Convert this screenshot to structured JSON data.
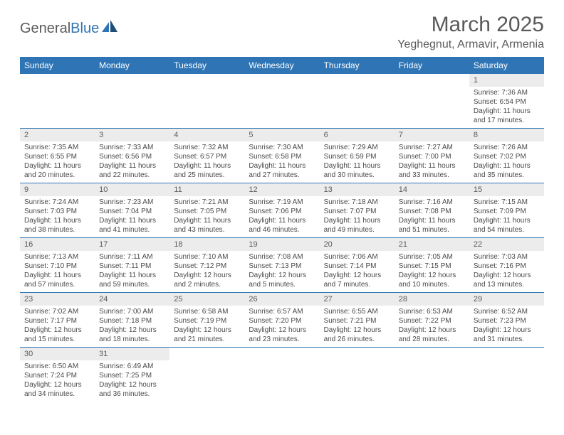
{
  "brand": {
    "text1": "General",
    "text2": "Blue"
  },
  "title": "March 2025",
  "location": "Yeghegnut, Armavir, Armenia",
  "colors": {
    "header_bg": "#2f75b5",
    "header_text": "#ffffff",
    "border": "#2f75b5",
    "daynum_bg": "#ececec",
    "text": "#4a4a4a",
    "title_text": "#5a5a5a"
  },
  "day_headers": [
    "Sunday",
    "Monday",
    "Tuesday",
    "Wednesday",
    "Thursday",
    "Friday",
    "Saturday"
  ],
  "weeks": [
    [
      null,
      null,
      null,
      null,
      null,
      null,
      {
        "n": "1",
        "sr": "Sunrise: 7:36 AM",
        "ss": "Sunset: 6:54 PM",
        "d1": "Daylight: 11 hours",
        "d2": "and 17 minutes."
      }
    ],
    [
      {
        "n": "2",
        "sr": "Sunrise: 7:35 AM",
        "ss": "Sunset: 6:55 PM",
        "d1": "Daylight: 11 hours",
        "d2": "and 20 minutes."
      },
      {
        "n": "3",
        "sr": "Sunrise: 7:33 AM",
        "ss": "Sunset: 6:56 PM",
        "d1": "Daylight: 11 hours",
        "d2": "and 22 minutes."
      },
      {
        "n": "4",
        "sr": "Sunrise: 7:32 AM",
        "ss": "Sunset: 6:57 PM",
        "d1": "Daylight: 11 hours",
        "d2": "and 25 minutes."
      },
      {
        "n": "5",
        "sr": "Sunrise: 7:30 AM",
        "ss": "Sunset: 6:58 PM",
        "d1": "Daylight: 11 hours",
        "d2": "and 27 minutes."
      },
      {
        "n": "6",
        "sr": "Sunrise: 7:29 AM",
        "ss": "Sunset: 6:59 PM",
        "d1": "Daylight: 11 hours",
        "d2": "and 30 minutes."
      },
      {
        "n": "7",
        "sr": "Sunrise: 7:27 AM",
        "ss": "Sunset: 7:00 PM",
        "d1": "Daylight: 11 hours",
        "d2": "and 33 minutes."
      },
      {
        "n": "8",
        "sr": "Sunrise: 7:26 AM",
        "ss": "Sunset: 7:02 PM",
        "d1": "Daylight: 11 hours",
        "d2": "and 35 minutes."
      }
    ],
    [
      {
        "n": "9",
        "sr": "Sunrise: 7:24 AM",
        "ss": "Sunset: 7:03 PM",
        "d1": "Daylight: 11 hours",
        "d2": "and 38 minutes."
      },
      {
        "n": "10",
        "sr": "Sunrise: 7:23 AM",
        "ss": "Sunset: 7:04 PM",
        "d1": "Daylight: 11 hours",
        "d2": "and 41 minutes."
      },
      {
        "n": "11",
        "sr": "Sunrise: 7:21 AM",
        "ss": "Sunset: 7:05 PM",
        "d1": "Daylight: 11 hours",
        "d2": "and 43 minutes."
      },
      {
        "n": "12",
        "sr": "Sunrise: 7:19 AM",
        "ss": "Sunset: 7:06 PM",
        "d1": "Daylight: 11 hours",
        "d2": "and 46 minutes."
      },
      {
        "n": "13",
        "sr": "Sunrise: 7:18 AM",
        "ss": "Sunset: 7:07 PM",
        "d1": "Daylight: 11 hours",
        "d2": "and 49 minutes."
      },
      {
        "n": "14",
        "sr": "Sunrise: 7:16 AM",
        "ss": "Sunset: 7:08 PM",
        "d1": "Daylight: 11 hours",
        "d2": "and 51 minutes."
      },
      {
        "n": "15",
        "sr": "Sunrise: 7:15 AM",
        "ss": "Sunset: 7:09 PM",
        "d1": "Daylight: 11 hours",
        "d2": "and 54 minutes."
      }
    ],
    [
      {
        "n": "16",
        "sr": "Sunrise: 7:13 AM",
        "ss": "Sunset: 7:10 PM",
        "d1": "Daylight: 11 hours",
        "d2": "and 57 minutes."
      },
      {
        "n": "17",
        "sr": "Sunrise: 7:11 AM",
        "ss": "Sunset: 7:11 PM",
        "d1": "Daylight: 11 hours",
        "d2": "and 59 minutes."
      },
      {
        "n": "18",
        "sr": "Sunrise: 7:10 AM",
        "ss": "Sunset: 7:12 PM",
        "d1": "Daylight: 12 hours",
        "d2": "and 2 minutes."
      },
      {
        "n": "19",
        "sr": "Sunrise: 7:08 AM",
        "ss": "Sunset: 7:13 PM",
        "d1": "Daylight: 12 hours",
        "d2": "and 5 minutes."
      },
      {
        "n": "20",
        "sr": "Sunrise: 7:06 AM",
        "ss": "Sunset: 7:14 PM",
        "d1": "Daylight: 12 hours",
        "d2": "and 7 minutes."
      },
      {
        "n": "21",
        "sr": "Sunrise: 7:05 AM",
        "ss": "Sunset: 7:15 PM",
        "d1": "Daylight: 12 hours",
        "d2": "and 10 minutes."
      },
      {
        "n": "22",
        "sr": "Sunrise: 7:03 AM",
        "ss": "Sunset: 7:16 PM",
        "d1": "Daylight: 12 hours",
        "d2": "and 13 minutes."
      }
    ],
    [
      {
        "n": "23",
        "sr": "Sunrise: 7:02 AM",
        "ss": "Sunset: 7:17 PM",
        "d1": "Daylight: 12 hours",
        "d2": "and 15 minutes."
      },
      {
        "n": "24",
        "sr": "Sunrise: 7:00 AM",
        "ss": "Sunset: 7:18 PM",
        "d1": "Daylight: 12 hours",
        "d2": "and 18 minutes."
      },
      {
        "n": "25",
        "sr": "Sunrise: 6:58 AM",
        "ss": "Sunset: 7:19 PM",
        "d1": "Daylight: 12 hours",
        "d2": "and 21 minutes."
      },
      {
        "n": "26",
        "sr": "Sunrise: 6:57 AM",
        "ss": "Sunset: 7:20 PM",
        "d1": "Daylight: 12 hours",
        "d2": "and 23 minutes."
      },
      {
        "n": "27",
        "sr": "Sunrise: 6:55 AM",
        "ss": "Sunset: 7:21 PM",
        "d1": "Daylight: 12 hours",
        "d2": "and 26 minutes."
      },
      {
        "n": "28",
        "sr": "Sunrise: 6:53 AM",
        "ss": "Sunset: 7:22 PM",
        "d1": "Daylight: 12 hours",
        "d2": "and 28 minutes."
      },
      {
        "n": "29",
        "sr": "Sunrise: 6:52 AM",
        "ss": "Sunset: 7:23 PM",
        "d1": "Daylight: 12 hours",
        "d2": "and 31 minutes."
      }
    ],
    [
      {
        "n": "30",
        "sr": "Sunrise: 6:50 AM",
        "ss": "Sunset: 7:24 PM",
        "d1": "Daylight: 12 hours",
        "d2": "and 34 minutes."
      },
      {
        "n": "31",
        "sr": "Sunrise: 6:49 AM",
        "ss": "Sunset: 7:25 PM",
        "d1": "Daylight: 12 hours",
        "d2": "and 36 minutes."
      },
      null,
      null,
      null,
      null,
      null
    ]
  ]
}
